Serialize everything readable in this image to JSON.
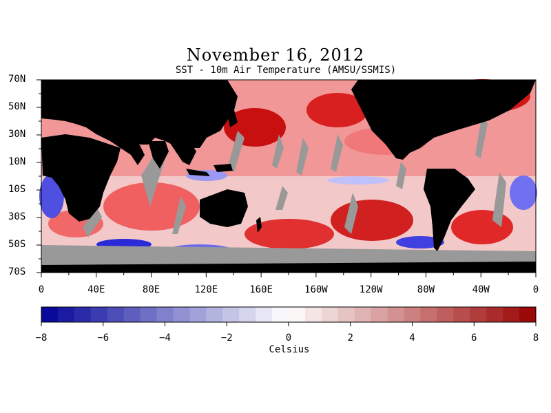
{
  "title": "November 16, 2012",
  "subtitle": "SST - 10m Air Temperature (AMSU/SSMIS)",
  "lat_labels": [
    "70N",
    "50N",
    "30N",
    "10N",
    "10S",
    "30S",
    "50S",
    "70S"
  ],
  "lon_labels": [
    "0",
    "40E",
    "80E",
    "120E",
    "160E",
    "160W",
    "120W",
    "80W",
    "40W",
    "0"
  ],
  "colorbar": {
    "unit": "Celsius",
    "min": -8,
    "max": 8,
    "step_count": 30,
    "tick_labels": [
      "−8",
      "−6",
      "−4",
      "−2",
      "0",
      "2",
      "4",
      "6",
      "8"
    ]
  },
  "colors": {
    "land": "#000000",
    "missing": "#999999",
    "cold_max": "#000099",
    "neutral": "#ffffff",
    "warm_max": "#990000"
  }
}
